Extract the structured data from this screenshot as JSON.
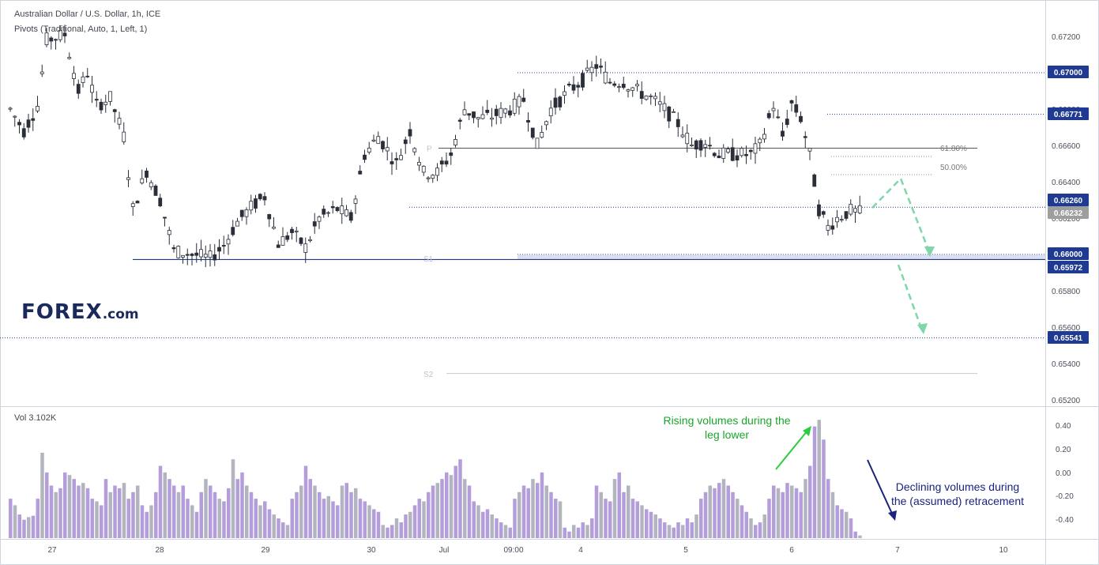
{
  "header": {
    "symbol_line": "Australian Dollar / U.S. Dollar, 1h, ICE",
    "indicator_line": "Pivots (Traditional, Auto, 1, Left, 1)"
  },
  "volume_header": "Vol  3.102K",
  "logo_text": "FOREX.com",
  "annotations": {
    "rising": "Rising volumes during the leg lower",
    "declining": "Declining volumes during the (assumed) retracement"
  },
  "colors": {
    "candle": "#2a2e39",
    "vol_up": "#b39ddb",
    "vol_down": "#b2b5be",
    "level_line": "#1f3a93",
    "price_badge": "#1f3a93",
    "current_badge": "#9e9e9e",
    "arrow_projection": "#7fd6a8",
    "arrow_rising": "#2ecc40",
    "arrow_declining": "#1a237e"
  },
  "chart_data": {
    "type": "candlestick",
    "instrument": "Australian Dollar / U.S. Dollar",
    "timeframe": "1h",
    "exchange": "ICE",
    "y_axis": {
      "ticks": [
        "0.67200",
        "0.67000",
        "0.66800",
        "0.66600",
        "0.66400",
        "0.66200",
        "0.66000",
        "0.65800",
        "0.65600",
        "0.65400",
        "0.65200"
      ],
      "ylim": [
        0.6516,
        0.673
      ]
    },
    "x_axis": {
      "ticks": [
        "27",
        "28",
        "29",
        "30",
        "Jul",
        "09:00",
        "4",
        "5",
        "6",
        "7",
        "10"
      ]
    },
    "price_labels": [
      {
        "label": "0.67000",
        "value": 0.67,
        "style": "level"
      },
      {
        "label": "0.66771",
        "value": 0.66771,
        "style": "level"
      },
      {
        "label": "0.66260",
        "value": 0.6626,
        "style": "level"
      },
      {
        "label": "0.66232",
        "value": 0.66232,
        "style": "current"
      },
      {
        "label": "0.66000",
        "value": 0.66,
        "style": "level"
      },
      {
        "label": "0.65972",
        "value": 0.65972,
        "style": "level"
      },
      {
        "label": "0.65541",
        "value": 0.65541,
        "style": "level"
      }
    ],
    "fib_levels": [
      {
        "label": "61.80%",
        "value": 0.66585
      },
      {
        "label": "50.00%",
        "value": 0.6645
      }
    ],
    "pivots": [
      {
        "label": "P",
        "value": 0.66585
      },
      {
        "label": "S1",
        "value": 0.65972
      },
      {
        "label": "S2",
        "value": 0.65345
      }
    ],
    "price_path": [
      [
        0,
        0.668
      ],
      [
        3,
        0.6668
      ],
      [
        6,
        0.6682
      ],
      [
        8,
        0.6718
      ],
      [
        12,
        0.6721
      ],
      [
        15,
        0.669
      ],
      [
        17,
        0.67
      ],
      [
        19,
        0.6682
      ],
      [
        22,
        0.6686
      ],
      [
        25,
        0.6665
      ],
      [
        27,
        0.6625
      ],
      [
        30,
        0.6646
      ],
      [
        33,
        0.663
      ],
      [
        36,
        0.6602
      ],
      [
        40,
        0.66
      ],
      [
        44,
        0.6598
      ],
      [
        47,
        0.6605
      ],
      [
        50,
        0.6618
      ],
      [
        53,
        0.6626
      ],
      [
        56,
        0.6632
      ],
      [
        59,
        0.6606
      ],
      [
        62,
        0.6612
      ],
      [
        65,
        0.6604
      ],
      [
        68,
        0.662
      ],
      [
        72,
        0.6625
      ],
      [
        75,
        0.662
      ],
      [
        78,
        0.6655
      ],
      [
        81,
        0.6665
      ],
      [
        85,
        0.665
      ],
      [
        88,
        0.6668
      ],
      [
        91,
        0.6645
      ],
      [
        94,
        0.6645
      ],
      [
        97,
        0.6655
      ],
      [
        100,
        0.668
      ],
      [
        103,
        0.6675
      ],
      [
        106,
        0.6676
      ],
      [
        110,
        0.668
      ],
      [
        113,
        0.6685
      ],
      [
        116,
        0.666
      ],
      [
        119,
        0.668
      ],
      [
        123,
        0.669
      ],
      [
        126,
        0.6696
      ],
      [
        129,
        0.6704
      ],
      [
        132,
        0.6695
      ],
      [
        135,
        0.6695
      ],
      [
        138,
        0.669
      ],
      [
        141,
        0.6686
      ],
      [
        144,
        0.668
      ],
      [
        147,
        0.6672
      ],
      [
        150,
        0.666
      ],
      [
        153,
        0.6662
      ],
      [
        156,
        0.6655
      ],
      [
        160,
        0.6655
      ],
      [
        163,
        0.6655
      ],
      [
        165,
        0.666
      ],
      [
        168,
        0.6682
      ],
      [
        170,
        0.6665
      ],
      [
        172,
        0.6683
      ],
      [
        174,
        0.6675
      ],
      [
        176,
        0.6655
      ],
      [
        177,
        0.664
      ],
      [
        178,
        0.6625
      ],
      [
        180,
        0.6615
      ],
      [
        182,
        0.662
      ],
      [
        185,
        0.6624
      ],
      [
        187,
        0.6623
      ]
    ],
    "volume": {
      "y_ticks": [
        "0.40",
        "0.20",
        "0.00",
        "-0.20",
        "-0.40"
      ],
      "values": [
        0.3,
        0.25,
        0.18,
        0.14,
        0.16,
        0.17,
        0.3,
        0.65,
        0.5,
        0.4,
        0.35,
        0.38,
        0.5,
        0.48,
        0.45,
        0.4,
        0.42,
        0.38,
        0.3,
        0.28,
        0.25,
        0.45,
        0.35,
        0.4,
        0.38,
        0.42,
        0.3,
        0.35,
        0.4,
        0.25,
        0.2,
        0.25,
        0.35,
        0.55,
        0.5,
        0.45,
        0.4,
        0.35,
        0.4,
        0.3,
        0.25,
        0.2,
        0.35,
        0.45,
        0.4,
        0.35,
        0.3,
        0.28,
        0.38,
        0.6,
        0.45,
        0.5,
        0.4,
        0.35,
        0.3,
        0.25,
        0.28,
        0.22,
        0.18,
        0.15,
        0.12,
        0.1,
        0.3,
        0.35,
        0.4,
        0.55,
        0.45,
        0.4,
        0.35,
        0.3,
        0.32,
        0.28,
        0.25,
        0.4,
        0.42,
        0.35,
        0.38,
        0.3,
        0.28,
        0.25,
        0.22,
        0.2,
        0.1,
        0.08,
        0.1,
        0.15,
        0.12,
        0.18,
        0.2,
        0.25,
        0.3,
        0.28,
        0.35,
        0.4,
        0.42,
        0.45,
        0.5,
        0.48,
        0.55,
        0.6,
        0.45,
        0.4,
        0.28,
        0.25,
        0.2,
        0.22,
        0.18,
        0.15,
        0.12,
        0.1,
        0.08,
        0.3,
        0.35,
        0.4,
        0.38,
        0.45,
        0.42,
        0.5,
        0.4,
        0.35,
        0.3,
        0.28,
        0.08,
        0.05,
        0.1,
        0.08,
        0.12,
        0.1,
        0.15,
        0.4,
        0.35,
        0.3,
        0.28,
        0.45,
        0.5,
        0.35,
        0.4,
        0.3,
        0.28,
        0.25,
        0.22,
        0.2,
        0.18,
        0.15,
        0.12,
        0.1,
        0.08,
        0.12,
        0.1,
        0.15,
        0.12,
        0.18,
        0.3,
        0.35,
        0.4,
        0.38,
        0.42,
        0.45,
        0.4,
        0.35,
        0.3,
        0.25,
        0.2,
        0.15,
        0.1,
        0.12,
        0.18,
        0.3,
        0.4,
        0.38,
        0.35,
        0.42,
        0.4,
        0.38,
        0.35,
        0.45,
        0.55,
        0.85,
        0.9,
        0.75,
        0.45,
        0.35,
        0.25,
        0.22,
        0.2,
        0.15,
        0.05,
        0.02
      ]
    }
  }
}
